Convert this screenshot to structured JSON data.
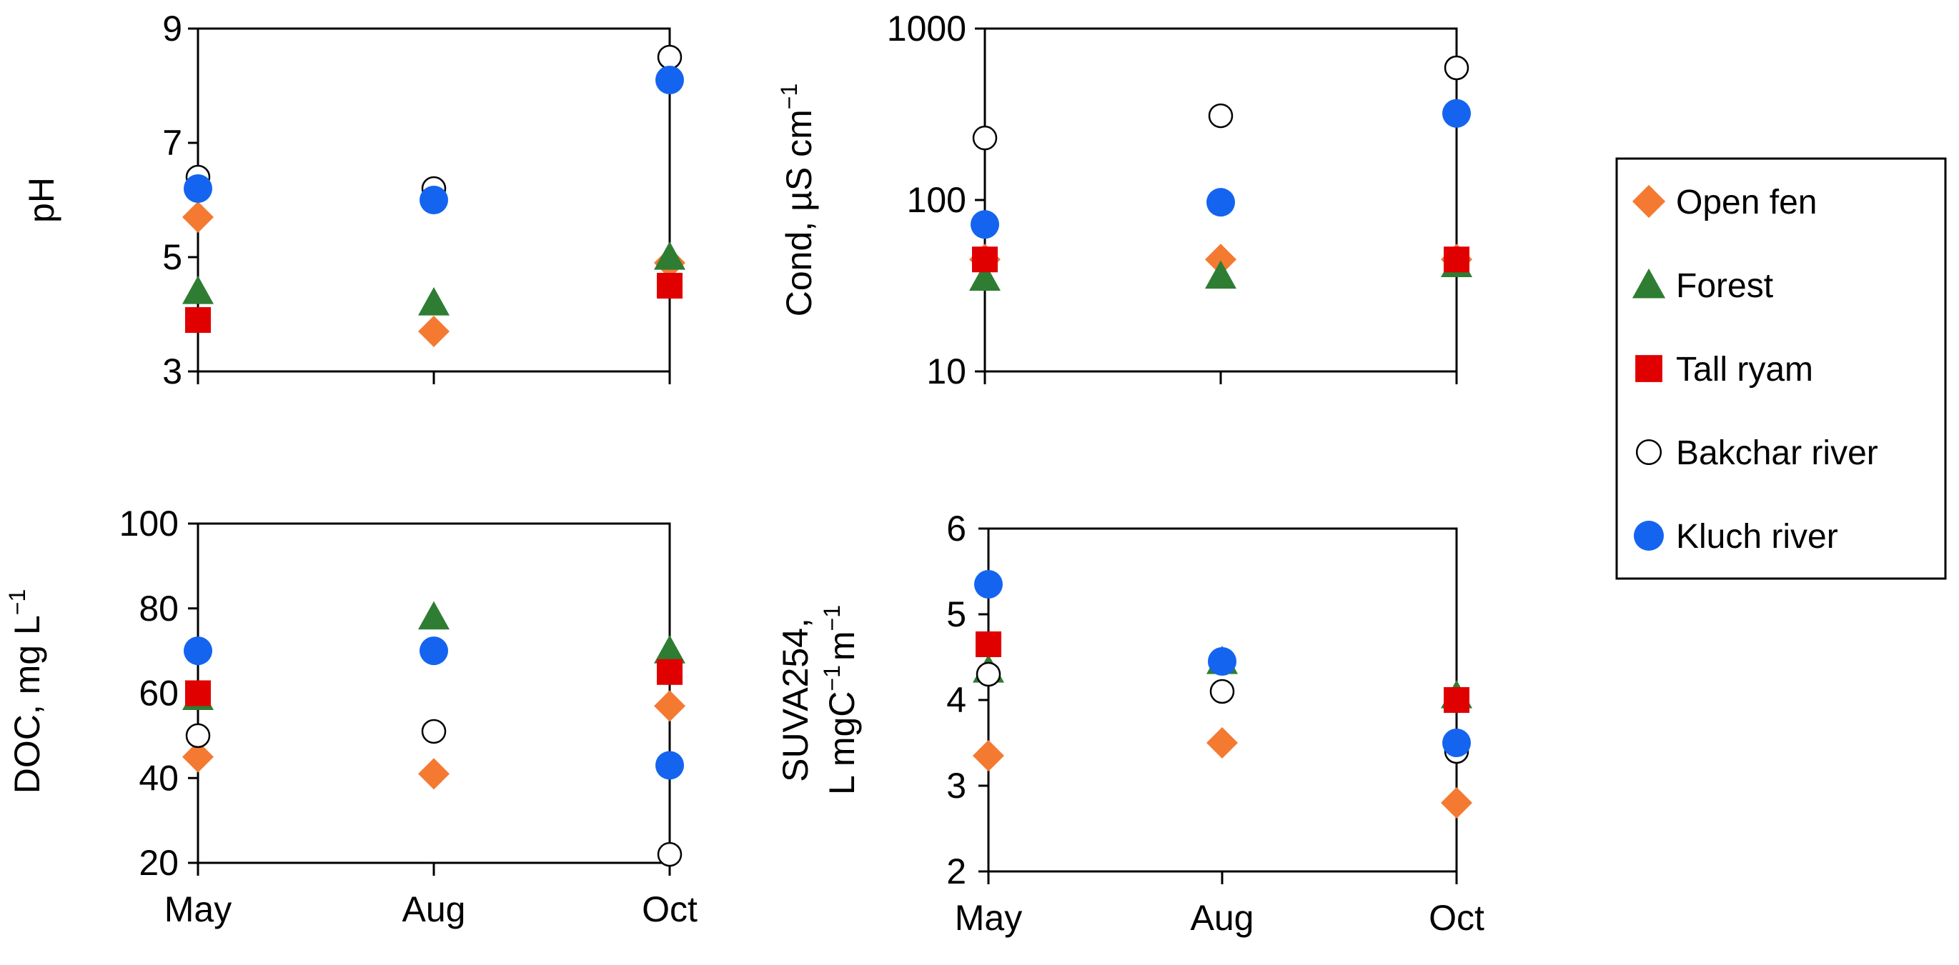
{
  "chart_data": [
    {
      "id": "ph",
      "type": "scatter",
      "title": "",
      "xlabel": "",
      "ylabel": "pH",
      "categories": [
        "May",
        "Aug",
        "Oct"
      ],
      "ylim": [
        3,
        9
      ],
      "yticks": [
        "9",
        "7",
        "5",
        "3"
      ],
      "yscale": "linear",
      "show_x_tick_labels": false,
      "series": [
        {
          "name": "Open fen",
          "values": [
            5.7,
            3.7,
            4.9
          ]
        },
        {
          "name": "Forest",
          "values": [
            4.4,
            4.2,
            5.0
          ]
        },
        {
          "name": "Tall ryam",
          "values": [
            3.9,
            null,
            4.5
          ]
        },
        {
          "name": "Bakchar river",
          "values": [
            6.4,
            6.2,
            8.5
          ]
        },
        {
          "name": "Kluch river",
          "values": [
            6.2,
            6.0,
            8.1
          ]
        }
      ]
    },
    {
      "id": "cond",
      "type": "scatter",
      "title": "",
      "xlabel": "",
      "ylabel": "Cond, µS cm",
      "ylabel_sup": "−1",
      "categories": [
        "May",
        "Aug",
        "Oct"
      ],
      "ylim": [
        10,
        1000
      ],
      "yticks": [
        "1000",
        "100",
        "10"
      ],
      "yscale": "log",
      "show_x_tick_labels": false,
      "series": [
        {
          "name": "Open fen",
          "values": [
            45,
            45,
            45
          ]
        },
        {
          "name": "Forest",
          "values": [
            35,
            36,
            42
          ]
        },
        {
          "name": "Tall ryam",
          "values": [
            45,
            null,
            45
          ]
        },
        {
          "name": "Bakchar river",
          "values": [
            230,
            310,
            590
          ]
        },
        {
          "name": "Kluch river",
          "values": [
            72,
            97,
            320
          ]
        }
      ]
    },
    {
      "id": "doc",
      "type": "scatter",
      "title": "",
      "xlabel": "",
      "ylabel": "DOC, mg L",
      "ylabel_sup": "−1",
      "categories": [
        "May",
        "Aug",
        "Oct"
      ],
      "ylim": [
        20,
        100
      ],
      "yticks": [
        "100",
        "80",
        "60",
        "40",
        "20"
      ],
      "yscale": "linear",
      "show_x_tick_labels": true,
      "series": [
        {
          "name": "Open fen",
          "values": [
            45,
            41,
            57
          ]
        },
        {
          "name": "Forest",
          "values": [
            59,
            78,
            70
          ]
        },
        {
          "name": "Tall ryam",
          "values": [
            60,
            null,
            65
          ]
        },
        {
          "name": "Bakchar river",
          "values": [
            50,
            51,
            22
          ]
        },
        {
          "name": "Kluch river",
          "values": [
            70,
            70,
            43
          ]
        }
      ]
    },
    {
      "id": "suva",
      "type": "scatter",
      "title": "",
      "xlabel": "",
      "ylabel_line1": "SUVA254,",
      "ylabel_line2_a": "L mgC",
      "ylabel_line2_sup_a": "−1",
      "ylabel_line2_b": "m",
      "ylabel_line2_sup_b": "−1",
      "categories": [
        "May",
        "Aug",
        "Oct"
      ],
      "ylim": [
        2,
        6
      ],
      "yticks": [
        "6",
        "5",
        "4",
        "3",
        "2"
      ],
      "yscale": "linear",
      "show_x_tick_labels": true,
      "series": [
        {
          "name": "Open fen",
          "values": [
            3.35,
            3.5,
            2.8
          ]
        },
        {
          "name": "Forest",
          "values": [
            4.35,
            4.45,
            4.05
          ]
        },
        {
          "name": "Tall ryam",
          "values": [
            4.65,
            null,
            4.0
          ]
        },
        {
          "name": "Bakchar river",
          "values": [
            4.3,
            4.1,
            3.4
          ]
        },
        {
          "name": "Kluch river",
          "values": [
            5.35,
            4.45,
            3.5
          ]
        }
      ]
    }
  ],
  "legend": {
    "items": [
      {
        "label": "Open fen",
        "marker": "diamond",
        "color": "#F47A32"
      },
      {
        "label": "Forest",
        "marker": "triangle",
        "color": "#2E7D32"
      },
      {
        "label": "Tall ryam",
        "marker": "square",
        "color": "#E00000"
      },
      {
        "label": "Bakchar river",
        "marker": "open-circle",
        "color": "#FFFFFF"
      },
      {
        "label": "Kluch river",
        "marker": "circle",
        "color": "#1464F0"
      }
    ]
  },
  "colors": {
    "open_fen": "#F47A32",
    "forest": "#2E7D32",
    "tall_ryam": "#E00000",
    "bakchar": "#FFFFFF",
    "kluch": "#1464F0"
  }
}
